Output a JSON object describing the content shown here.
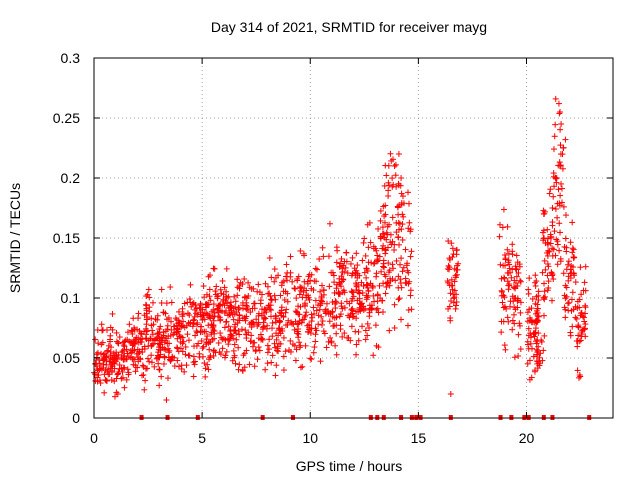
{
  "chart_data": {
    "type": "scatter",
    "title": "Day 314 of 2021, SRMTID for receiver mayg",
    "xlabel": "GPS time / hours",
    "ylabel": "SRMTID / TECUs",
    "xlim": [
      0,
      24
    ],
    "ylim": [
      0,
      0.3
    ],
    "xticks": [
      0,
      5,
      10,
      15,
      20
    ],
    "xtick_labels": [
      "0",
      "5",
      "10",
      "15",
      "20"
    ],
    "yticks": [
      0,
      0.05,
      0.1,
      0.15,
      0.2,
      0.25,
      0.3
    ],
    "ytick_labels": [
      "0",
      "0.05",
      "0.1",
      "0.15",
      "0.2",
      "0.25",
      "0.3"
    ],
    "grid": true,
    "series": [
      {
        "name": "SRMTID",
        "color": "#ff0000",
        "marker": "plus",
        "trend": [
          [
            0.0,
            0.05,
            0.012
          ],
          [
            0.5,
            0.048,
            0.012
          ],
          [
            1.0,
            0.05,
            0.013
          ],
          [
            1.5,
            0.05,
            0.012
          ],
          [
            2.0,
            0.062,
            0.015
          ],
          [
            2.5,
            0.075,
            0.018
          ],
          [
            3.0,
            0.065,
            0.015
          ],
          [
            3.5,
            0.07,
            0.016
          ],
          [
            4.0,
            0.072,
            0.016
          ],
          [
            4.5,
            0.07,
            0.016
          ],
          [
            5.0,
            0.075,
            0.018
          ],
          [
            5.5,
            0.08,
            0.02
          ],
          [
            6.0,
            0.082,
            0.02
          ],
          [
            6.5,
            0.078,
            0.02
          ],
          [
            7.0,
            0.08,
            0.02
          ],
          [
            7.5,
            0.083,
            0.02
          ],
          [
            8.0,
            0.08,
            0.02
          ],
          [
            8.5,
            0.085,
            0.02
          ],
          [
            9.0,
            0.085,
            0.022
          ],
          [
            9.5,
            0.09,
            0.022
          ],
          [
            10.0,
            0.09,
            0.022
          ],
          [
            10.5,
            0.092,
            0.022
          ],
          [
            11.0,
            0.095,
            0.022
          ],
          [
            11.5,
            0.1,
            0.022
          ],
          [
            12.0,
            0.1,
            0.02
          ],
          [
            12.5,
            0.105,
            0.02
          ],
          [
            13.0,
            0.11,
            0.025
          ],
          [
            13.5,
            0.15,
            0.035
          ],
          [
            14.0,
            0.16,
            0.035
          ],
          [
            14.5,
            0.12,
            0.03
          ]
        ],
        "clusters": [
          [
            16.6,
            0.11,
            0.02
          ],
          [
            19.0,
            0.12,
            0.025
          ],
          [
            19.5,
            0.1,
            0.025
          ],
          [
            20.3,
            0.07,
            0.02
          ],
          [
            20.6,
            0.08,
            0.02
          ],
          [
            21.0,
            0.14,
            0.03
          ],
          [
            21.5,
            0.18,
            0.04
          ],
          [
            22.0,
            0.12,
            0.025
          ],
          [
            22.5,
            0.08,
            0.02
          ]
        ],
        "outliers": [
          [
            13.9,
            0.21
          ],
          [
            14.1,
            0.22
          ],
          [
            14.2,
            0.2
          ],
          [
            13.6,
            0.185
          ],
          [
            16.5,
            0.02
          ],
          [
            21.5,
            0.262
          ],
          [
            21.55,
            0.255
          ],
          [
            21.6,
            0.245
          ],
          [
            21.7,
            0.225
          ],
          [
            21.8,
            0.232
          ],
          [
            21.4,
            0.2
          ],
          [
            20.8,
            0.17
          ],
          [
            21.2,
            0.175
          ],
          [
            3.35,
            0.015
          ]
        ]
      }
    ],
    "gap_markers_x": [
      2.2,
      3.4,
      4.8,
      7.8,
      9.2,
      12.8,
      13.1,
      13.4,
      14.2,
      14.7,
      14.9,
      15.1,
      16.5,
      18.8,
      19.3,
      19.9,
      20.1,
      20.8,
      21.2,
      22.9
    ]
  }
}
